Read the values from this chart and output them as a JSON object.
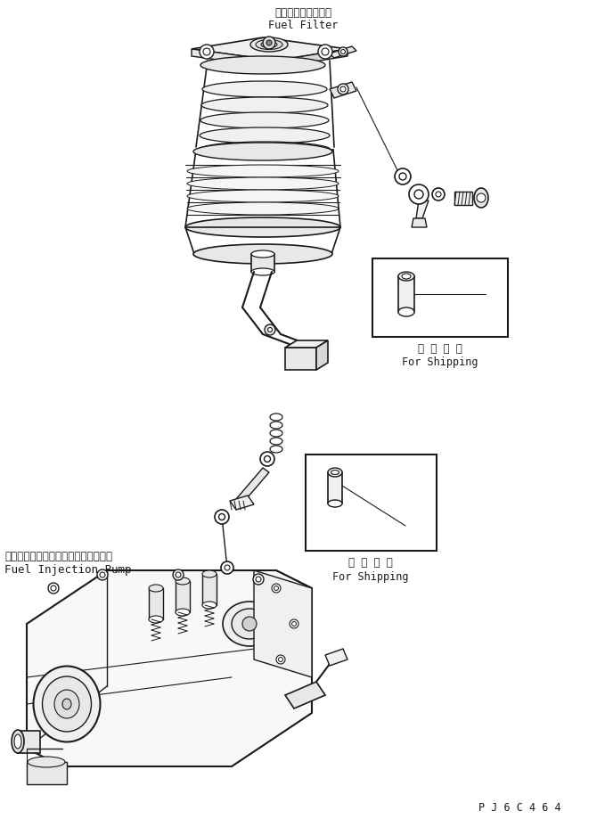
{
  "bg_color": "#ffffff",
  "lc": "#1a1a1a",
  "fig_w": 6.79,
  "fig_h": 9.19,
  "dpi": 100,
  "title_jp": "フェエルフィルダ",
  "title_en": "Fuel Filter",
  "pump_jp": "フェエルインシェクションベンブ",
  "pump_en": "Fuel Injection Pump",
  "ship_jp": "運 搜 部 品",
  "ship_en": "For Shipping",
  "part_code": "P J 6 C 4 6 4",
  "fs_label": 8.5,
  "fs_small": 7.5
}
